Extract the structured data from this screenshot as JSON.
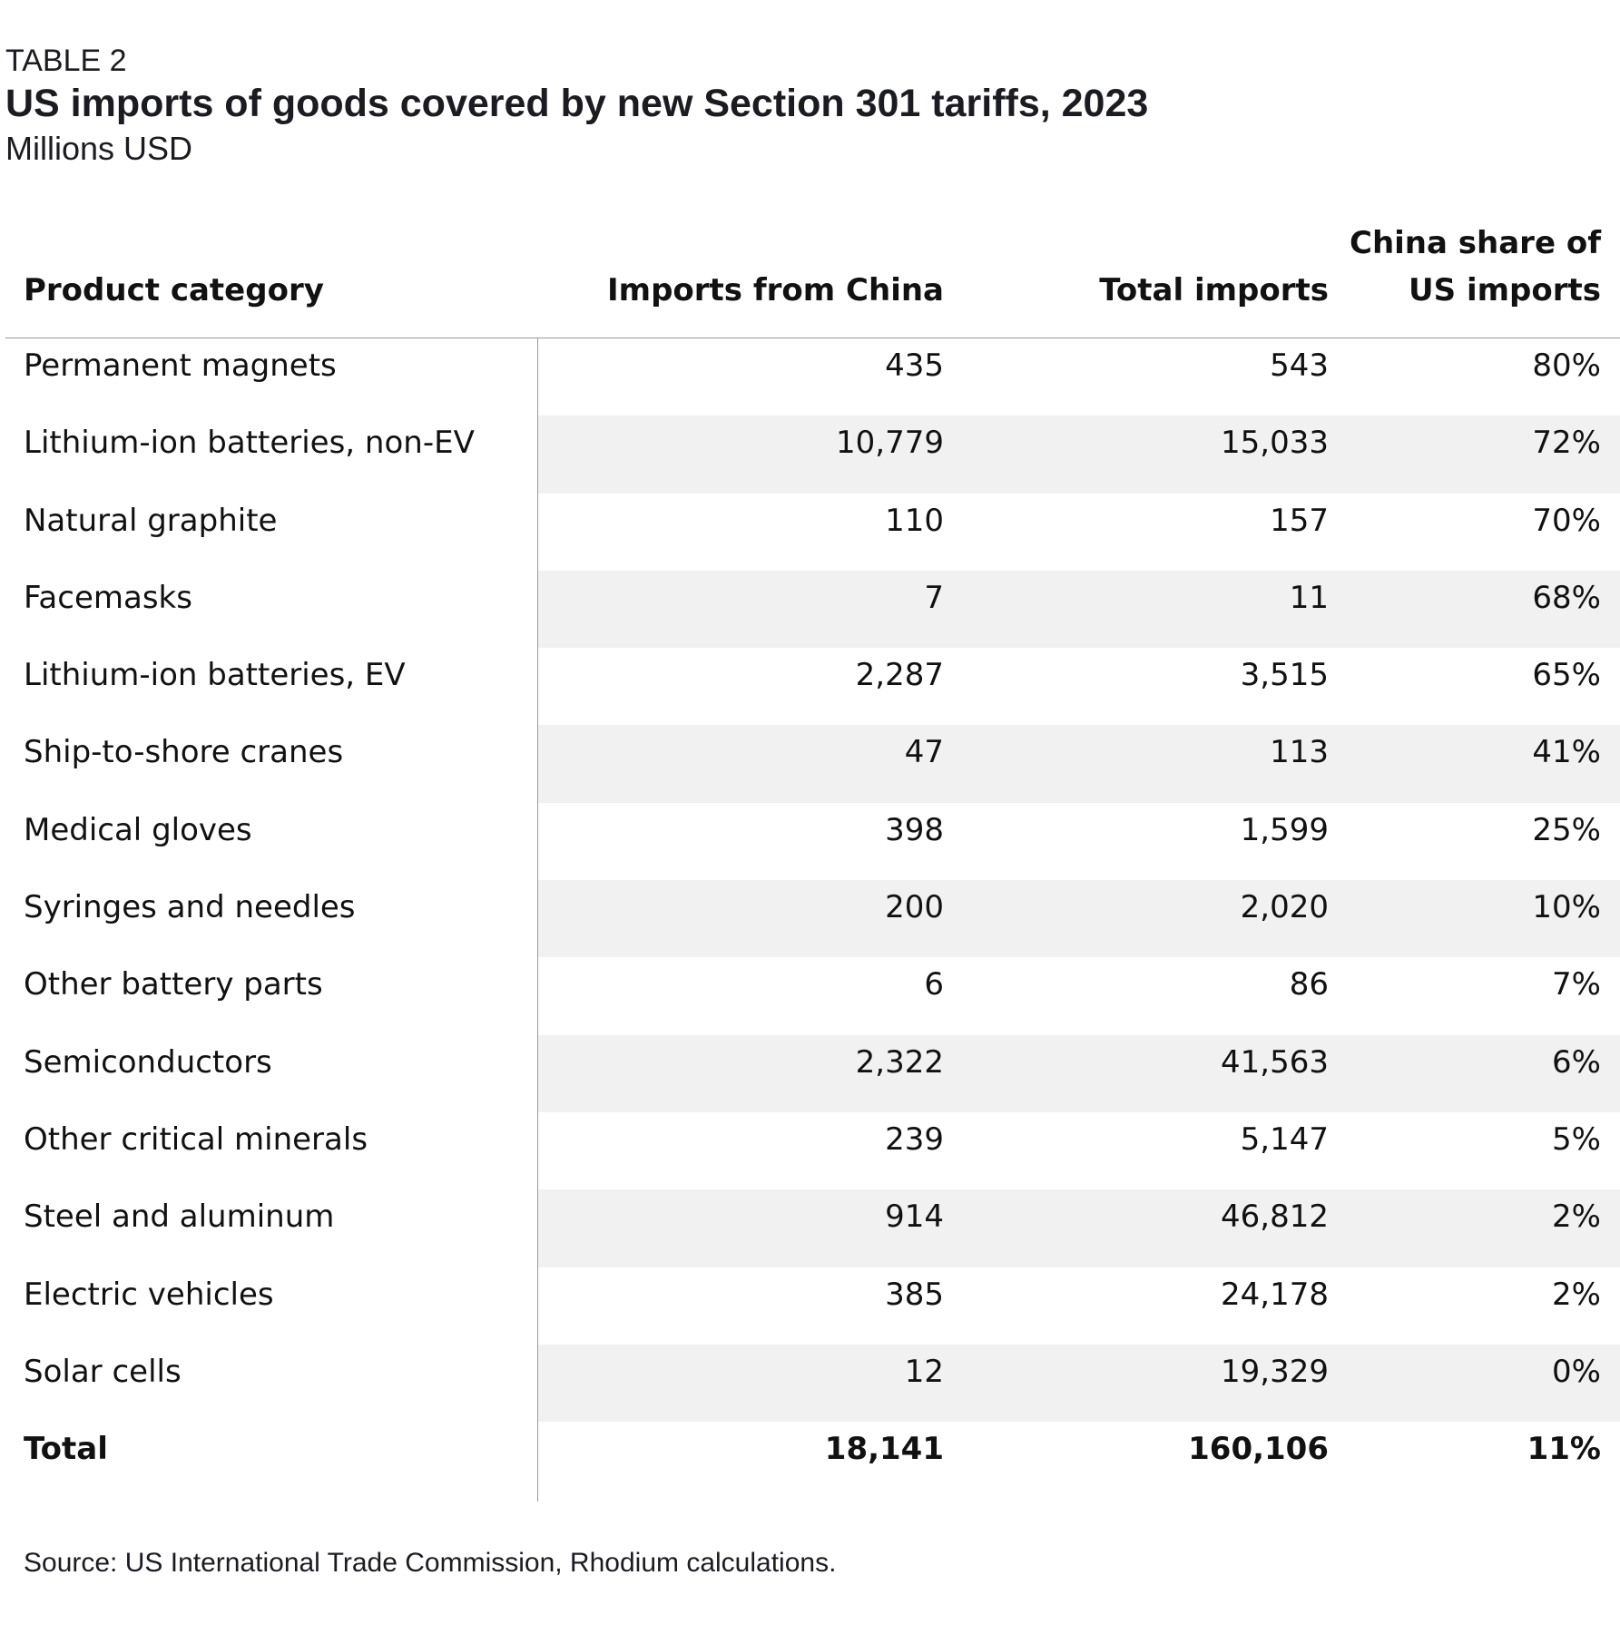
{
  "label": "TABLE 2",
  "title": "US imports of goods covered by new Section 301 tariffs, 2023",
  "subtitle": "Millions USD",
  "source": "Source: US International Trade Commission, Rhodium calculations.",
  "chart_data": {
    "type": "table",
    "columns": [
      "Product category",
      "Imports from China",
      "Total imports",
      "China share of US imports"
    ],
    "header_lines": {
      "c3_line1": "China share of",
      "c3_line2": "US imports"
    },
    "rows": [
      {
        "category": "Permanent magnets",
        "china": "435",
        "total": "543",
        "share": "80%"
      },
      {
        "category": "Lithium-ion batteries, non-EV",
        "china": "10,779",
        "total": "15,033",
        "share": "72%"
      },
      {
        "category": "Natural graphite",
        "china": "110",
        "total": "157",
        "share": "70%"
      },
      {
        "category": "Facemasks",
        "china": "7",
        "total": "11",
        "share": "68%"
      },
      {
        "category": "Lithium-ion batteries, EV",
        "china": "2,287",
        "total": "3,515",
        "share": "65%"
      },
      {
        "category": "Ship-to-shore cranes",
        "china": "47",
        "total": "113",
        "share": "41%"
      },
      {
        "category": "Medical gloves",
        "china": "398",
        "total": "1,599",
        "share": "25%"
      },
      {
        "category": "Syringes and needles",
        "china": "200",
        "total": "2,020",
        "share": "10%"
      },
      {
        "category": "Other battery parts",
        "china": "6",
        "total": "86",
        "share": "7%"
      },
      {
        "category": "Semiconductors",
        "china": "2,322",
        "total": "41,563",
        "share": "6%"
      },
      {
        "category": "Other critical minerals",
        "china": "239",
        "total": "5,147",
        "share": "5%"
      },
      {
        "category": "Steel and aluminum",
        "china": "914",
        "total": "46,812",
        "share": "2%"
      },
      {
        "category": "Electric vehicles",
        "china": "385",
        "total": "24,178",
        "share": "2%"
      },
      {
        "category": "Solar cells",
        "china": "12",
        "total": "19,329",
        "share": "0%"
      }
    ],
    "total": {
      "category": "Total",
      "china": "18,141",
      "total": "160,106",
      "share": "11%"
    }
  }
}
